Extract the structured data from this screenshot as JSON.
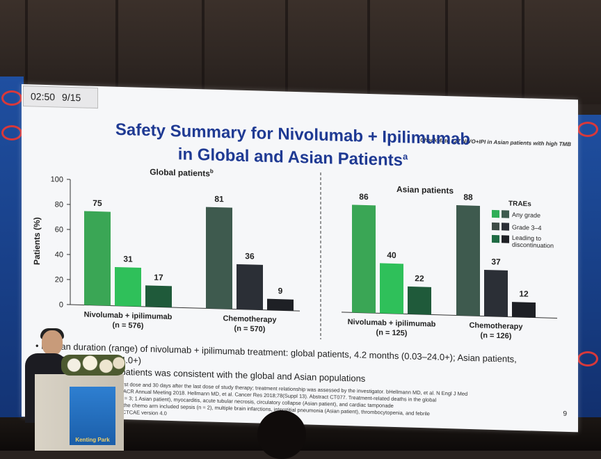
{
  "timer": {
    "time": "02:50",
    "slide": "9/15"
  },
  "study": "CheckMate 227 NIVO+IPI in Asian patients with high TMB",
  "title": {
    "line1": "Safety Summary for Nivolumab + Ipilimumab",
    "line2": "in Global and Asian Patients",
    "sup": "a"
  },
  "chart_data": [
    {
      "type": "bar",
      "title": "Global patients",
      "title_sup": "b",
      "ylabel": "Patients (%)",
      "ylim": [
        0,
        100
      ],
      "yticks": [
        0,
        20,
        40,
        60,
        80,
        100
      ],
      "groups": [
        {
          "label": "Nivolumab + ipilimumab",
          "n": "(n = 576)",
          "values": [
            75,
            31,
            17
          ]
        },
        {
          "label": "Chemotherapy",
          "n": "(n = 570)",
          "values": [
            81,
            36,
            9
          ]
        }
      ]
    },
    {
      "type": "bar",
      "title": "Asian patients",
      "legend_title": "TRAEs",
      "legend": [
        "Any grade",
        "Grade 3–4",
        "Leading to discontinuation"
      ],
      "ylim": [
        0,
        100
      ],
      "groups": [
        {
          "label": "Nivolumab + ipilimumab",
          "n": "(n = 125)",
          "values": [
            86,
            40,
            22
          ]
        },
        {
          "label": "Chemotherapy",
          "n": "(n = 126)",
          "values": [
            88,
            37,
            12
          ]
        }
      ]
    }
  ],
  "colors": {
    "nivo": [
      "#3aa655",
      "#2fc05a",
      "#1f5a3a"
    ],
    "chemo": [
      "#3e5a4e",
      "#2b2f36",
      "#1e2025"
    ],
    "legend": [
      "#2fae57",
      "#3e4c46",
      "#1f6b44"
    ]
  },
  "bullets": {
    "b1": "Median duration (range) of nivolumab + ipilimumab treatment: global patients, 4.2 months (0.03–24.0+); Asian patients,",
    "b1b": "4.2 months (0.03–24.0+)",
    "b2": "Safety in Japanese patients was consistent with the global and Asian populations"
  },
  "footnotes": [
    "aIncludes events reported between the first dose and 30 days after the last dose of study therapy; treatment relationship was assessed by the investigator. bHellmann MD, et al. N Engl J Med",
    "2018;378:2093–2104; presented at the AACR Annual Meeting 2018. Hellmann MD, et al. Cancer Res 2018;78(Suppl 13). Abstract CT077. Treatment-related deaths in the global",
    "all nivo + ipi arm included pneumonitis (n = 3; 1 Asian patient), myocarditis, acute tubular necrosis, circulatory collapse (Asian patient), and cardiac tamponade",
    "(n = 1 each); treatment-related deaths in the chemo arm included sepsis (n = 2), multiple brain infarctions, interstitial pneumonia (Asian patient), thrombocytopenia, and febrile",
    "neutropenia. Per MedDRA version 20.1; CTCAE version 4.0"
  ],
  "page_number": "9",
  "podium": {
    "brand": "Kenting Park"
  }
}
